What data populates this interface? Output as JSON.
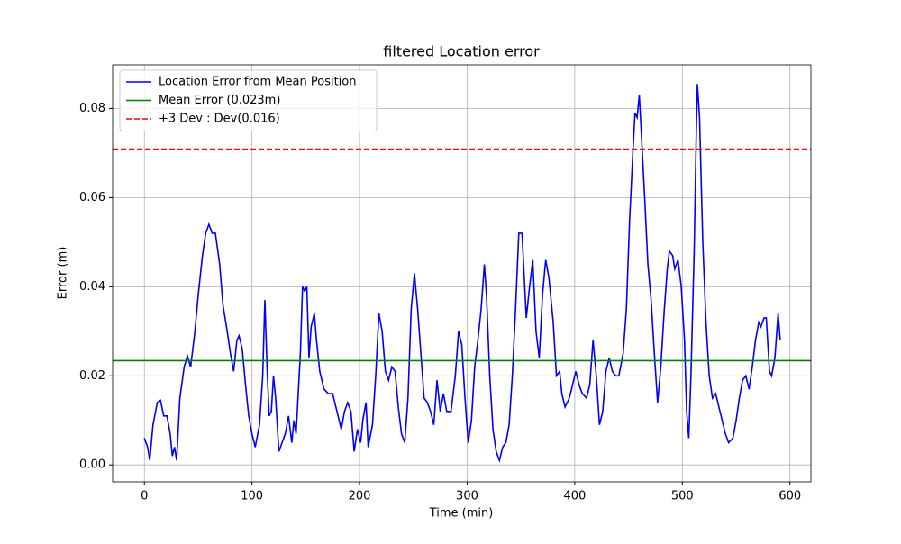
{
  "chart_data": {
    "type": "line",
    "title": "filtered Location error",
    "xlabel": "Time (min)",
    "ylabel": "Error (m)",
    "x": [
      0,
      3,
      5,
      8,
      12,
      15,
      18,
      21,
      24,
      26,
      28,
      30,
      33,
      37,
      40,
      43,
      47,
      50,
      54,
      57,
      60,
      63,
      66,
      70,
      73,
      77,
      80,
      83,
      86,
      88,
      91,
      94,
      97,
      100,
      103,
      107,
      110,
      112,
      114,
      116,
      118,
      120,
      122,
      125,
      128,
      131,
      134,
      137,
      139,
      141,
      145,
      147,
      149,
      151,
      153,
      155,
      158,
      160,
      163,
      167,
      171,
      175,
      179,
      183,
      186,
      189,
      192,
      195,
      198,
      201,
      203,
      206,
      208,
      212,
      215,
      218,
      221,
      224,
      227,
      230,
      233,
      236,
      239,
      242,
      245,
      248,
      251,
      254,
      257,
      260,
      263,
      266,
      269,
      272,
      275,
      278,
      281,
      285,
      289,
      292,
      295,
      298,
      301,
      304,
      307,
      310,
      313,
      316,
      318,
      321,
      324,
      327,
      330,
      333,
      336,
      339,
      342,
      345,
      348,
      351,
      355,
      358,
      361,
      364,
      367,
      370,
      373,
      376,
      380,
      383,
      386,
      388,
      391,
      395,
      398,
      401,
      404,
      407,
      411,
      414,
      417,
      420,
      423,
      426,
      429,
      432,
      435,
      438,
      441,
      445,
      448,
      451,
      454,
      456,
      458,
      460,
      462,
      465,
      468,
      471,
      474,
      477,
      480,
      483,
      486,
      488,
      491,
      493,
      496,
      499,
      502,
      504,
      506,
      508,
      511,
      513,
      514,
      516,
      519,
      522,
      525,
      528,
      531,
      534,
      537,
      540,
      543,
      547,
      550,
      553,
      556,
      559,
      562,
      565,
      568,
      571,
      573,
      576,
      578,
      581,
      583,
      586,
      589,
      591
    ],
    "series": [
      {
        "name": "Location Error from Mean Position",
        "color": "#0000ff",
        "values": [
          0.006,
          0.004,
          0.001,
          0.009,
          0.014,
          0.0145,
          0.011,
          0.011,
          0.007,
          0.002,
          0.004,
          0.001,
          0.015,
          0.022,
          0.0245,
          0.022,
          0.03,
          0.038,
          0.047,
          0.052,
          0.054,
          0.052,
          0.052,
          0.045,
          0.036,
          0.03,
          0.025,
          0.021,
          0.028,
          0.029,
          0.026,
          0.018,
          0.011,
          0.007,
          0.004,
          0.009,
          0.02,
          0.037,
          0.022,
          0.011,
          0.012,
          0.02,
          0.015,
          0.003,
          0.005,
          0.007,
          0.011,
          0.005,
          0.01,
          0.007,
          0.025,
          0.04,
          0.039,
          0.04,
          0.024,
          0.031,
          0.034,
          0.028,
          0.021,
          0.017,
          0.016,
          0.016,
          0.012,
          0.008,
          0.012,
          0.014,
          0.012,
          0.003,
          0.008,
          0.005,
          0.01,
          0.014,
          0.004,
          0.009,
          0.02,
          0.034,
          0.03,
          0.021,
          0.019,
          0.022,
          0.021,
          0.013,
          0.007,
          0.005,
          0.015,
          0.035,
          0.043,
          0.035,
          0.025,
          0.015,
          0.014,
          0.012,
          0.009,
          0.019,
          0.012,
          0.016,
          0.012,
          0.012,
          0.02,
          0.03,
          0.027,
          0.015,
          0.005,
          0.01,
          0.022,
          0.028,
          0.035,
          0.045,
          0.038,
          0.02,
          0.008,
          0.003,
          0.001,
          0.004,
          0.005,
          0.009,
          0.02,
          0.035,
          0.052,
          0.052,
          0.033,
          0.04,
          0.046,
          0.03,
          0.024,
          0.038,
          0.046,
          0.042,
          0.032,
          0.02,
          0.021,
          0.016,
          0.013,
          0.015,
          0.018,
          0.021,
          0.018,
          0.016,
          0.015,
          0.018,
          0.028,
          0.02,
          0.009,
          0.012,
          0.021,
          0.024,
          0.021,
          0.02,
          0.02,
          0.025,
          0.035,
          0.055,
          0.07,
          0.079,
          0.078,
          0.083,
          0.074,
          0.06,
          0.045,
          0.037,
          0.025,
          0.014,
          0.022,
          0.034,
          0.044,
          0.048,
          0.047,
          0.044,
          0.046,
          0.04,
          0.028,
          0.012,
          0.006,
          0.02,
          0.048,
          0.075,
          0.0855,
          0.078,
          0.05,
          0.032,
          0.02,
          0.015,
          0.016,
          0.013,
          0.01,
          0.007,
          0.005,
          0.006,
          0.01,
          0.015,
          0.019,
          0.02,
          0.017,
          0.022,
          0.028,
          0.032,
          0.031,
          0.033,
          0.033,
          0.021,
          0.02,
          0.024,
          0.034,
          0.028
        ]
      }
    ],
    "reference_lines": [
      {
        "name": "Mean Error (0.023m)",
        "color": "#008000",
        "value": 0.0234,
        "dashed": false
      },
      {
        "name": "+3 Dev : Dev(0.016)",
        "color": "#ff0000",
        "value": 0.0709,
        "dashed": true
      }
    ],
    "xlim": [
      -29.5,
      619.5
    ],
    "ylim": [
      -0.0038,
      0.0898
    ],
    "xticks": [
      0,
      100,
      200,
      300,
      400,
      500,
      600
    ],
    "yticks": [
      {
        "value": 0,
        "label": "0.00"
      },
      0.02,
      0.04,
      0.06,
      0.08
    ],
    "grid": true,
    "legend": "upper left"
  }
}
